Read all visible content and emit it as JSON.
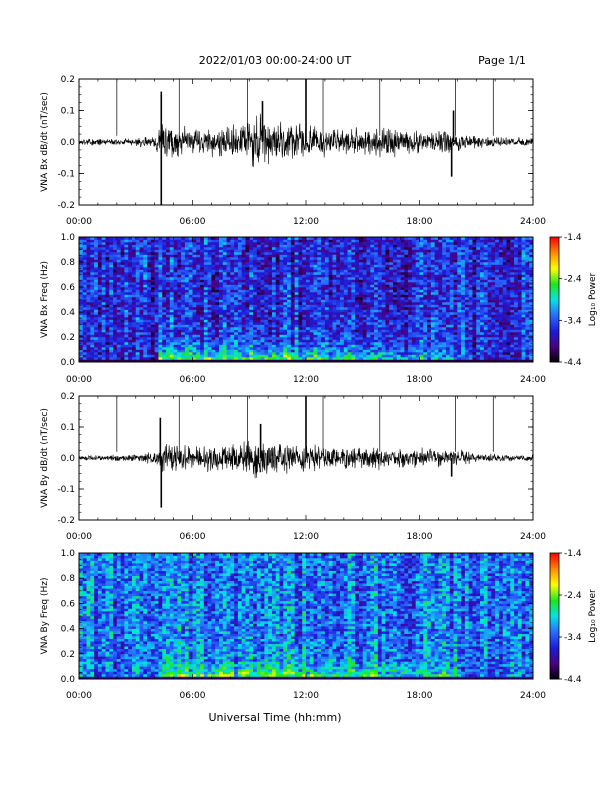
{
  "header": {
    "title": "2022/01/03  00:00-24:00 UT",
    "page": "Page 1/1"
  },
  "xaxis": {
    "label": "Universal Time (hh:mm)",
    "tick_labels": [
      "00:00",
      "06:00",
      "12:00",
      "18:00",
      "24:00"
    ],
    "range_hours": [
      0,
      24
    ]
  },
  "colors": {
    "trace": "#000000",
    "colormap": [
      "#000000",
      "#4b0082",
      "#1c1cd9",
      "#2a6bff",
      "#00e5e5",
      "#1ee61e",
      "#ffff00",
      "#ff8c00",
      "#ff0000"
    ]
  },
  "chart_data": [
    {
      "type": "line",
      "name": "waveform-bx",
      "ylabel": "VNA Bx dB/dt (nT/sec)",
      "ylim": [
        -0.2,
        0.2
      ],
      "yticks": [
        -0.2,
        -0.1,
        0.0,
        0.1,
        0.2
      ],
      "ytick_labels": [
        "-0.2",
        "-0.1",
        "0.0",
        "0.1",
        "0.2"
      ],
      "xlim": [
        0,
        24
      ],
      "envelope": {
        "x_hours": [
          0,
          1,
          2,
          3,
          4,
          4.5,
          5,
          6,
          7,
          8,
          9,
          9.5,
          10,
          11,
          12,
          13,
          14,
          15,
          16,
          17,
          18,
          19,
          20,
          21,
          22,
          23,
          24
        ],
        "amplitude": [
          0.01,
          0.01,
          0.01,
          0.012,
          0.02,
          0.06,
          0.05,
          0.04,
          0.045,
          0.05,
          0.07,
          0.09,
          0.07,
          0.06,
          0.05,
          0.045,
          0.04,
          0.04,
          0.045,
          0.04,
          0.035,
          0.035,
          0.03,
          0.02,
          0.015,
          0.012,
          0.012
        ]
      },
      "spikes": [
        {
          "x": 4.35,
          "y": 0.16
        },
        {
          "x": 4.35,
          "y": -0.2
        },
        {
          "x": 9.7,
          "y": 0.13
        },
        {
          "x": 12.0,
          "y": 0.22
        },
        {
          "x": 19.7,
          "y": -0.11
        },
        {
          "x": 19.8,
          "y": 0.1
        }
      ],
      "markers_hours": [
        2.0,
        5.3,
        8.9,
        12.0,
        12.9,
        15.9,
        19.9,
        21.9
      ]
    },
    {
      "type": "heatmap",
      "name": "spectrogram-bx",
      "ylabel": "VNA Bx Freq (Hz)",
      "ylim": [
        0,
        1.0
      ],
      "yticks": [
        0.0,
        0.2,
        0.4,
        0.6,
        0.8,
        1.0
      ],
      "ytick_labels": [
        "0.0",
        "0.2",
        "0.4",
        "0.6",
        "0.8",
        "1.0"
      ],
      "xlim": [
        0,
        24
      ],
      "colorbar": {
        "label": "Log₁₀ Power",
        "range": [
          -4.4,
          -1.4
        ],
        "ticks": [
          -1.4,
          -2.4,
          -3.4,
          -4.4
        ],
        "tick_labels": [
          "-1.4",
          "-2.4",
          "-3.4",
          "-4.4"
        ]
      },
      "grid": {
        "cols": 120,
        "rows": 50
      },
      "background_level": -3.6,
      "enhancement_start_hours": 4.3,
      "enhancement_end_hours": 20.0,
      "low_freq_peak_level": -2.2
    },
    {
      "type": "line",
      "name": "waveform-by",
      "ylabel": "VNA By dB/dt (nT/sec)",
      "ylim": [
        -0.2,
        0.2
      ],
      "yticks": [
        -0.2,
        -0.1,
        0.0,
        0.1,
        0.2
      ],
      "ytick_labels": [
        "-0.2",
        "-0.1",
        "0.0",
        "0.1",
        "0.2"
      ],
      "xlim": [
        0,
        24
      ],
      "envelope": {
        "x_hours": [
          0,
          1,
          2,
          3,
          4,
          4.5,
          5,
          6,
          7,
          8,
          9,
          9.5,
          10,
          11,
          12,
          13,
          14,
          15,
          16,
          17,
          18,
          19,
          20,
          21,
          22,
          23,
          24
        ],
        "amplitude": [
          0.008,
          0.008,
          0.01,
          0.012,
          0.02,
          0.05,
          0.045,
          0.035,
          0.04,
          0.045,
          0.055,
          0.06,
          0.05,
          0.045,
          0.045,
          0.04,
          0.035,
          0.035,
          0.035,
          0.03,
          0.03,
          0.03,
          0.025,
          0.015,
          0.012,
          0.01,
          0.01
        ]
      },
      "spikes": [
        {
          "x": 4.3,
          "y": 0.13
        },
        {
          "x": 4.35,
          "y": -0.16
        },
        {
          "x": 9.6,
          "y": 0.11
        },
        {
          "x": 12.0,
          "y": 0.2
        },
        {
          "x": 19.7,
          "y": -0.06
        }
      ],
      "markers_hours": [
        2.0,
        5.3,
        8.9,
        12.0,
        12.9,
        15.9,
        19.9,
        21.9
      ]
    },
    {
      "type": "heatmap",
      "name": "spectrogram-by",
      "ylabel": "VNA By Freq (Hz)",
      "ylim": [
        0,
        1.0
      ],
      "yticks": [
        0.0,
        0.2,
        0.4,
        0.6,
        0.8,
        1.0
      ],
      "ytick_labels": [
        "0.0",
        "0.2",
        "0.4",
        "0.6",
        "0.8",
        "1.0"
      ],
      "xlim": [
        0,
        24
      ],
      "colorbar": {
        "label": "Log₁₀ Power",
        "range": [
          -4.4,
          -1.4
        ],
        "ticks": [
          -1.4,
          -2.4,
          -3.4,
          -4.4
        ],
        "tick_labels": [
          "-1.4",
          "-2.4",
          "-3.4",
          "-4.4"
        ]
      },
      "grid": {
        "cols": 120,
        "rows": 50
      },
      "background_level": -3.3,
      "enhancement_start_hours": 4.3,
      "enhancement_end_hours": 20.0,
      "low_freq_peak_level": -2.3
    }
  ]
}
